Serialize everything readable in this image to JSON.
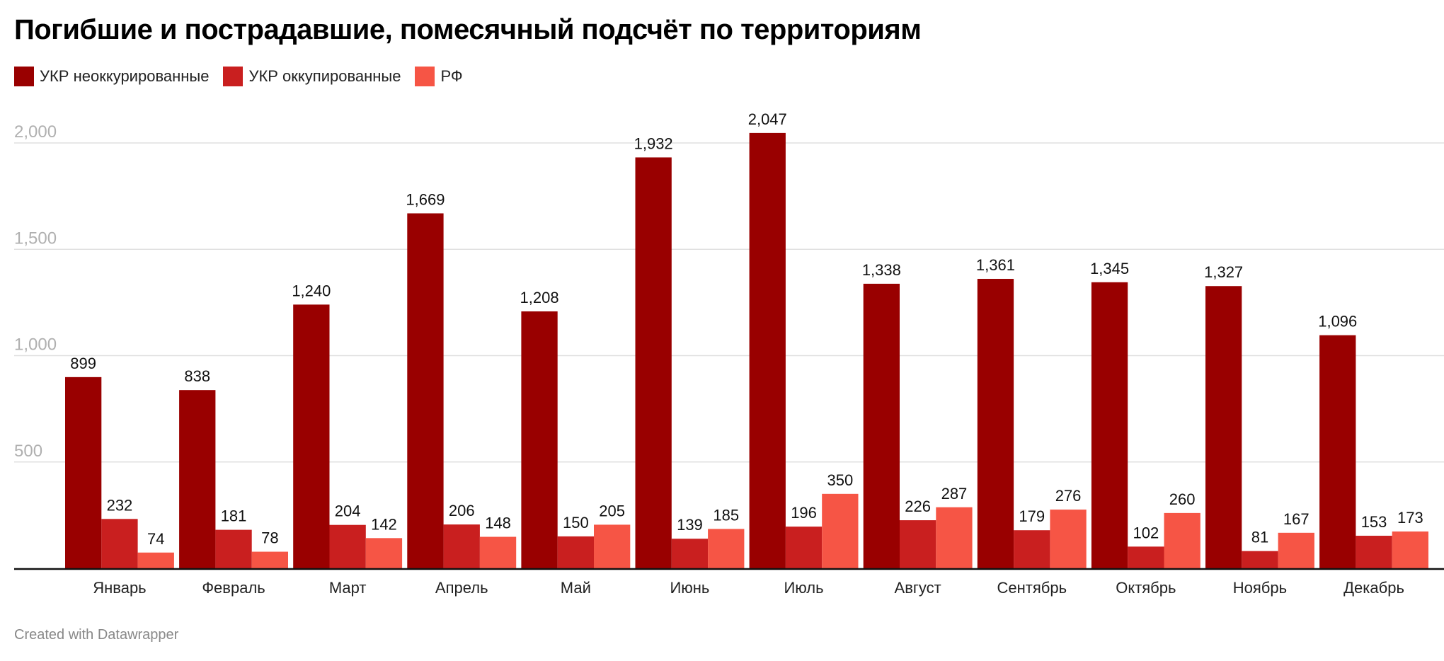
{
  "chart_data": {
    "type": "bar",
    "title": "Погибшие и пострадавшие, помесячный подсчёт по территориям",
    "categories": [
      "Январь",
      "Февраль",
      "Март",
      "Апрель",
      "Май",
      "Июнь",
      "Июль",
      "Август",
      "Сентябрь",
      "Октябрь",
      "Ноябрь",
      "Декабрь"
    ],
    "series": [
      {
        "name": "УКР неоккурированные",
        "color": "#990000",
        "values": [
          899,
          838,
          1240,
          1669,
          1208,
          1932,
          2047,
          1338,
          1361,
          1345,
          1327,
          1096
        ]
      },
      {
        "name": "УКР оккупированные",
        "color": "#c91f1f",
        "values": [
          232,
          181,
          204,
          206,
          150,
          139,
          196,
          226,
          179,
          102,
          81,
          153
        ]
      },
      {
        "name": "РФ",
        "color": "#f65545",
        "values": [
          74,
          78,
          142,
          148,
          205,
          185,
          350,
          287,
          276,
          260,
          167,
          173
        ]
      }
    ],
    "yticks": [
      500,
      1000,
      1500,
      2000
    ],
    "ytick_labels": [
      "500",
      "1,000",
      "1,500",
      "2,000"
    ],
    "ylim": [
      0,
      2000
    ],
    "grid": true,
    "legend_position": "top-left",
    "xlabel": "",
    "ylabel": ""
  },
  "footer": "Created with Datawrapper"
}
